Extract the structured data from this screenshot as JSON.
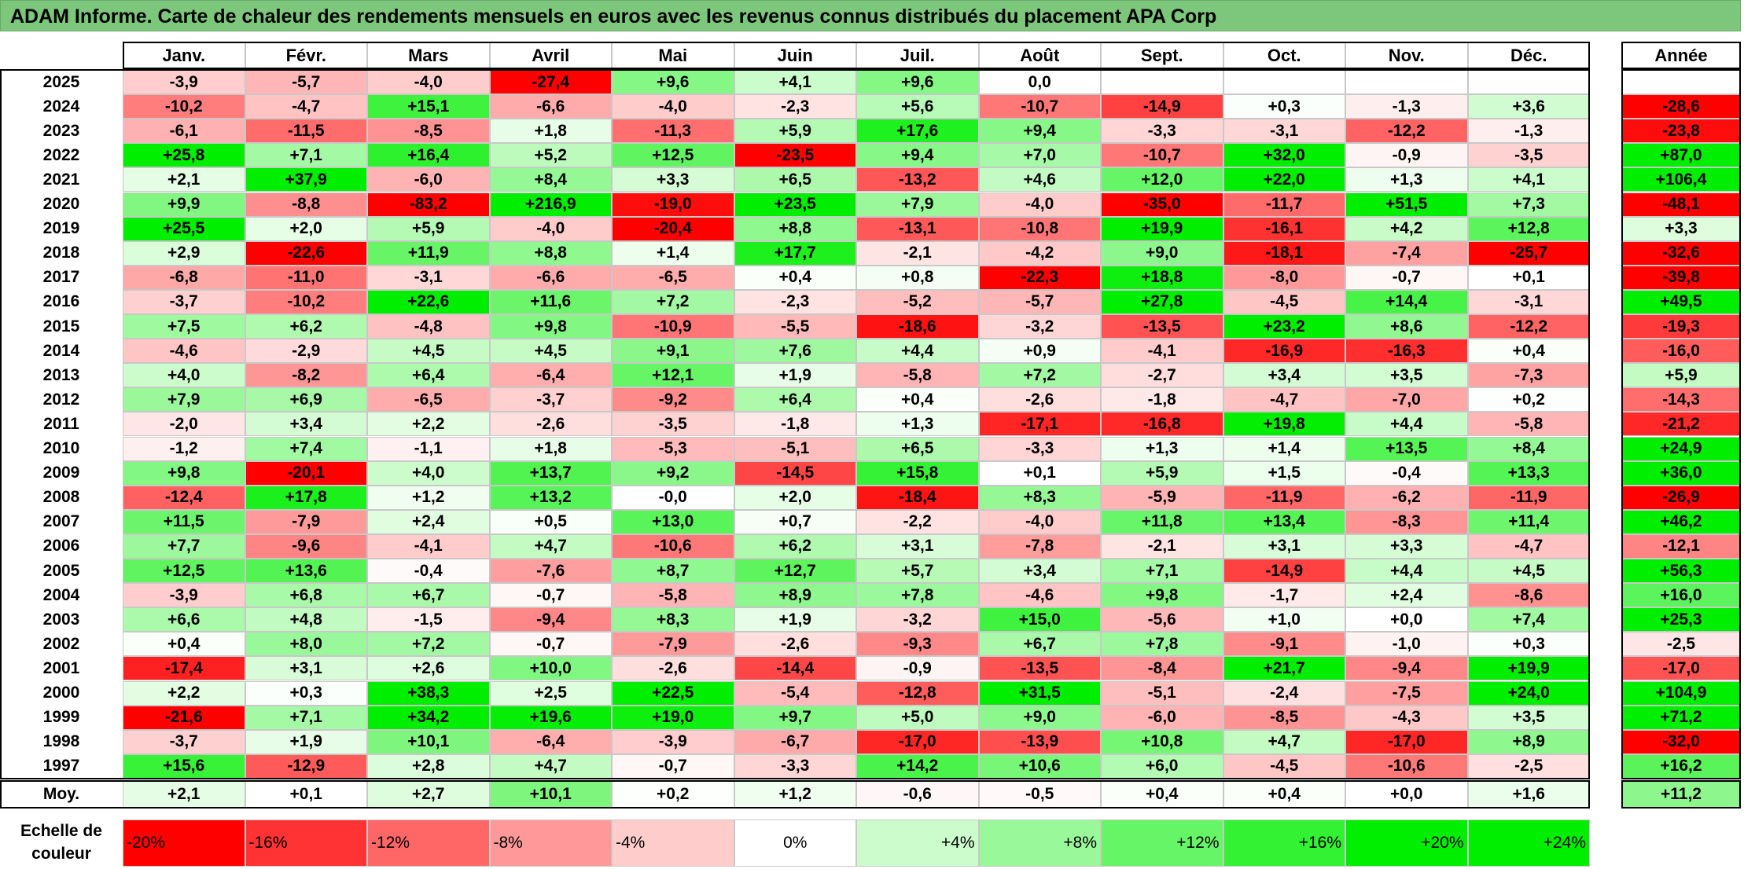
{
  "title": "ADAM Informe. Carte de chaleur des rendements mensuels en euros avec les revenus connus distribués du placement APA Corp",
  "chart_data": {
    "type": "heatmap",
    "columns": [
      "Janv.",
      "Févr.",
      "Mars",
      "Avril",
      "Mai",
      "Juin",
      "Juil.",
      "Août",
      "Sept.",
      "Oct.",
      "Nov.",
      "Déc."
    ],
    "year_column": "Année",
    "rows": [
      {
        "year": "2025",
        "values": [
          "-3,9",
          "-5,7",
          "-4,0",
          "-27,4",
          "+9,6",
          "+4,1",
          "+9,6",
          "0,0",
          "",
          "",
          "",
          ""
        ],
        "annual": ""
      },
      {
        "year": "2024",
        "values": [
          "-10,2",
          "-4,7",
          "+15,1",
          "-6,6",
          "-4,0",
          "-2,3",
          "+5,6",
          "-10,7",
          "-14,9",
          "+0,3",
          "-1,3",
          "+3,6"
        ],
        "annual": "-28,6"
      },
      {
        "year": "2023",
        "values": [
          "-6,1",
          "-11,5",
          "-8,5",
          "+1,8",
          "-11,3",
          "+5,9",
          "+17,6",
          "+9,4",
          "-3,3",
          "-3,1",
          "-12,2",
          "-1,3"
        ],
        "annual": "-23,8"
      },
      {
        "year": "2022",
        "values": [
          "+25,8",
          "+7,1",
          "+16,4",
          "+5,2",
          "+12,5",
          "-23,5",
          "+9,4",
          "+7,0",
          "-10,7",
          "+32,0",
          "-0,9",
          "-3,5"
        ],
        "annual": "+87,0"
      },
      {
        "year": "2021",
        "values": [
          "+2,1",
          "+37,9",
          "-6,0",
          "+8,4",
          "+3,3",
          "+6,5",
          "-13,2",
          "+4,6",
          "+12,0",
          "+22,0",
          "+1,3",
          "+4,1"
        ],
        "annual": "+106,4"
      },
      {
        "year": "2020",
        "values": [
          "+9,9",
          "-8,8",
          "-83,2",
          "+216,9",
          "-19,0",
          "+23,5",
          "+7,9",
          "-4,0",
          "-35,0",
          "-11,7",
          "+51,5",
          "+7,3"
        ],
        "annual": "-48,1"
      },
      {
        "year": "2019",
        "values": [
          "+25,5",
          "+2,0",
          "+5,9",
          "-4,0",
          "-20,4",
          "+8,8",
          "-13,1",
          "-10,8",
          "+19,9",
          "-16,1",
          "+4,2",
          "+12,8"
        ],
        "annual": "+3,3"
      },
      {
        "year": "2018",
        "values": [
          "+2,9",
          "-22,6",
          "+11,9",
          "+8,8",
          "+1,4",
          "+17,7",
          "-2,1",
          "-4,2",
          "+9,0",
          "-18,1",
          "-7,4",
          "-25,7"
        ],
        "annual": "-32,6"
      },
      {
        "year": "2017",
        "values": [
          "-6,8",
          "-11,0",
          "-3,1",
          "-6,6",
          "-6,5",
          "+0,4",
          "+0,8",
          "-22,3",
          "+18,8",
          "-8,0",
          "-0,7",
          "+0,1"
        ],
        "annual": "-39,8"
      },
      {
        "year": "2016",
        "values": [
          "-3,7",
          "-10,2",
          "+22,6",
          "+11,6",
          "+7,2",
          "-2,3",
          "-5,2",
          "-5,7",
          "+27,8",
          "-4,5",
          "+14,4",
          "-3,1"
        ],
        "annual": "+49,5"
      },
      {
        "year": "2015",
        "values": [
          "+7,5",
          "+6,2",
          "-4,8",
          "+9,8",
          "-10,9",
          "-5,5",
          "-18,6",
          "-3,2",
          "-13,5",
          "+23,2",
          "+8,6",
          "-12,2"
        ],
        "annual": "-19,3"
      },
      {
        "year": "2014",
        "values": [
          "-4,6",
          "-2,9",
          "+4,5",
          "+4,5",
          "+9,1",
          "+7,6",
          "+4,4",
          "+0,9",
          "-4,1",
          "-16,9",
          "-16,3",
          "+0,4"
        ],
        "annual": "-16,0"
      },
      {
        "year": "2013",
        "values": [
          "+4,0",
          "-8,2",
          "+6,4",
          "-6,4",
          "+12,1",
          "+1,9",
          "-5,8",
          "+7,2",
          "-2,7",
          "+3,4",
          "+3,5",
          "-7,3"
        ],
        "annual": "+5,9"
      },
      {
        "year": "2012",
        "values": [
          "+7,9",
          "+6,9",
          "-6,5",
          "-3,7",
          "-9,2",
          "+6,4",
          "+0,4",
          "-2,6",
          "-1,8",
          "-4,7",
          "-7,0",
          "+0,2"
        ],
        "annual": "-14,3"
      },
      {
        "year": "2011",
        "values": [
          "-2,0",
          "+3,4",
          "+2,2",
          "-2,6",
          "-3,5",
          "-1,8",
          "+1,3",
          "-17,1",
          "-16,8",
          "+19,8",
          "+4,4",
          "-5,8"
        ],
        "annual": "-21,2"
      },
      {
        "year": "2010",
        "values": [
          "-1,2",
          "+7,4",
          "-1,1",
          "+1,8",
          "-5,3",
          "-5,1",
          "+6,5",
          "-3,3",
          "+1,3",
          "+1,4",
          "+13,5",
          "+8,4"
        ],
        "annual": "+24,9"
      },
      {
        "year": "2009",
        "values": [
          "+9,8",
          "-20,1",
          "+4,0",
          "+13,7",
          "+9,2",
          "-14,5",
          "+15,8",
          "+0,1",
          "+5,9",
          "+1,5",
          "-0,4",
          "+13,3"
        ],
        "annual": "+36,0"
      },
      {
        "year": "2008",
        "values": [
          "-12,4",
          "+17,8",
          "+1,2",
          "+13,2",
          "-0,0",
          "+2,0",
          "-18,4",
          "+8,3",
          "-5,9",
          "-11,9",
          "-6,2",
          "-11,9"
        ],
        "annual": "-26,9"
      },
      {
        "year": "2007",
        "values": [
          "+11,5",
          "-7,9",
          "+2,4",
          "+0,5",
          "+13,0",
          "+0,7",
          "-2,2",
          "-4,0",
          "+11,8",
          "+13,4",
          "-8,3",
          "+11,4"
        ],
        "annual": "+46,2"
      },
      {
        "year": "2006",
        "values": [
          "+7,7",
          "-9,6",
          "-4,1",
          "+4,7",
          "-10,6",
          "+6,2",
          "+3,1",
          "-7,8",
          "-2,1",
          "+3,1",
          "+3,3",
          "-4,7"
        ],
        "annual": "-12,1"
      },
      {
        "year": "2005",
        "values": [
          "+12,5",
          "+13,6",
          "-0,4",
          "-7,6",
          "+8,7",
          "+12,7",
          "+5,7",
          "+3,4",
          "+7,1",
          "-14,9",
          "+4,4",
          "+4,5"
        ],
        "annual": "+56,3"
      },
      {
        "year": "2004",
        "values": [
          "-3,9",
          "+6,8",
          "+6,7",
          "-0,7",
          "-5,8",
          "+8,9",
          "+7,8",
          "-4,6",
          "+9,8",
          "-1,7",
          "+2,4",
          "-8,6"
        ],
        "annual": "+16,0"
      },
      {
        "year": "2003",
        "values": [
          "+6,6",
          "+4,8",
          "-1,5",
          "-9,4",
          "+8,3",
          "+1,9",
          "-3,2",
          "+15,0",
          "-5,6",
          "+1,0",
          "+0,0",
          "+7,4"
        ],
        "annual": "+25,3"
      },
      {
        "year": "2002",
        "values": [
          "+0,4",
          "+8,0",
          "+7,2",
          "-0,7",
          "-7,9",
          "-2,6",
          "-9,3",
          "+6,7",
          "+7,8",
          "-9,1",
          "-1,0",
          "+0,3"
        ],
        "annual": "-2,5"
      },
      {
        "year": "2001",
        "values": [
          "-17,4",
          "+3,1",
          "+2,6",
          "+10,0",
          "-2,6",
          "-14,4",
          "-0,9",
          "-13,5",
          "-8,4",
          "+21,7",
          "-9,4",
          "+19,9"
        ],
        "annual": "-17,0"
      },
      {
        "year": "2000",
        "values": [
          "+2,2",
          "+0,3",
          "+38,3",
          "+2,5",
          "+22,5",
          "-5,4",
          "-12,8",
          "+31,5",
          "-5,1",
          "-2,4",
          "-7,5",
          "+24,0"
        ],
        "annual": "+104,9"
      },
      {
        "year": "1999",
        "values": [
          "-21,6",
          "+7,1",
          "+34,2",
          "+19,6",
          "+19,0",
          "+9,7",
          "+5,0",
          "+9,0",
          "-6,0",
          "-8,5",
          "-4,3",
          "+3,5"
        ],
        "annual": "+71,2"
      },
      {
        "year": "1998",
        "values": [
          "-3,7",
          "+1,9",
          "+10,1",
          "-6,4",
          "-3,9",
          "-6,7",
          "-17,0",
          "-13,9",
          "+10,8",
          "+4,7",
          "-17,0",
          "+8,9"
        ],
        "annual": "-32,0"
      },
      {
        "year": "1997",
        "values": [
          "+15,6",
          "-12,9",
          "+2,8",
          "+4,7",
          "-0,7",
          "-3,3",
          "+14,2",
          "+10,6",
          "+6,0",
          "-4,5",
          "-10,6",
          "-2,5"
        ],
        "annual": "+16,2"
      }
    ],
    "average_label": "Moy.",
    "averages": [
      "+2,1",
      "+0,1",
      "+2,7",
      "+10,1",
      "+0,2",
      "+1,2",
      "-0,6",
      "-0,5",
      "+0,4",
      "+0,4",
      "+0,0",
      "+1,6"
    ],
    "average_annual": "+11,2",
    "scale_label_line1": "Echelle de",
    "scale_label_line2": "couleur",
    "scale": [
      {
        "label": "-20%",
        "value": -20,
        "align": "left"
      },
      {
        "label": "-16%",
        "value": -16,
        "align": "left"
      },
      {
        "label": "-12%",
        "value": -12,
        "align": "left"
      },
      {
        "label": "-8%",
        "value": -8,
        "align": "left"
      },
      {
        "label": "-4%",
        "value": -4,
        "align": "left"
      },
      {
        "label": "0%",
        "value": 0,
        "align": "center"
      },
      {
        "label": "+4%",
        "value": 4,
        "align": "right"
      },
      {
        "label": "+8%",
        "value": 8,
        "align": "right"
      },
      {
        "label": "+12%",
        "value": 12,
        "align": "right"
      },
      {
        "label": "+16%",
        "value": 16,
        "align": "right"
      },
      {
        "label": "+20%",
        "value": 20,
        "align": "right"
      },
      {
        "label": "+24%",
        "value": 24,
        "align": "right"
      }
    ],
    "colors": {
      "negative_max": "#ff0000",
      "neutral": "#ffffff",
      "positive_max": "#00ee00",
      "title_bar": "#7cc77b"
    }
  }
}
